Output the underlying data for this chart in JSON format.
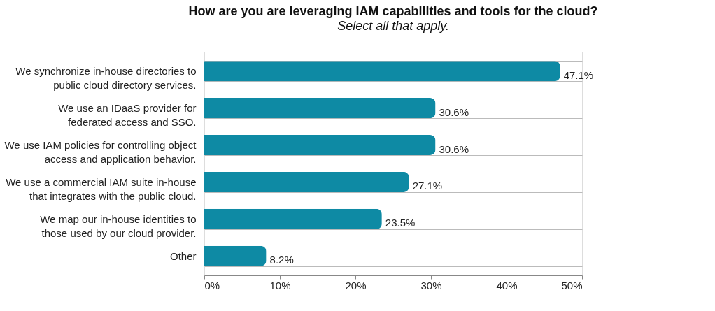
{
  "chart_data": {
    "type": "bar",
    "orientation": "horizontal",
    "title": "How are you are leveraging IAM capabilities and tools for the cloud?",
    "subtitle": "Select all that apply.",
    "categories": [
      "We synchronize in-house directories to\npublic cloud directory services.",
      "We use an IDaaS provider for\nfederated access and SSO.",
      "We use IAM policies for controlling object\naccess and application behavior.",
      "We use a commercial IAM suite in-house\nthat integrates with the public cloud.",
      "We map our in-house identities to\nthose used by our cloud provider.",
      "Other"
    ],
    "values": [
      47.1,
      30.6,
      30.6,
      27.1,
      23.5,
      8.2
    ],
    "value_labels": [
      "47.1%",
      "30.6%",
      "30.6%",
      "27.1%",
      "23.5%",
      "8.2%"
    ],
    "color": "#0e8aa4",
    "xlim": [
      0,
      50
    ],
    "xticks": [
      {
        "value": 0,
        "label": "0%"
      },
      {
        "value": 10,
        "label": "10%"
      },
      {
        "value": 20,
        "label": "20%"
      },
      {
        "value": 30,
        "label": "30%"
      },
      {
        "value": 40,
        "label": "40%"
      },
      {
        "value": 50,
        "label": "50%"
      }
    ],
    "grid": "y"
  }
}
